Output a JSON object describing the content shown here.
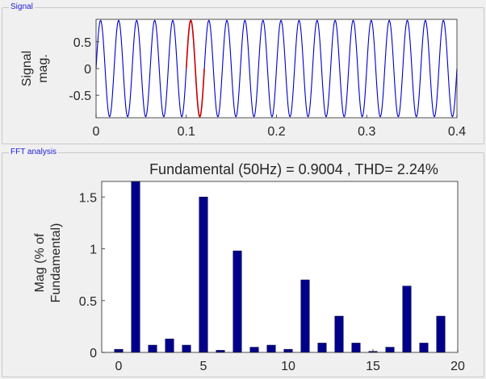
{
  "panels": {
    "signal_title": "Signal",
    "fft_title": "FFT analysis"
  },
  "chart_data": [
    {
      "type": "line",
      "title": "",
      "xlabel": "",
      "ylabel_lines": [
        "Signal",
        "mag."
      ],
      "xlim": [
        0,
        0.4
      ],
      "ylim": [
        -0.92,
        0.92
      ],
      "xticks": [
        0,
        0.1,
        0.2,
        0.3,
        0.4
      ],
      "xtick_labels": [
        "0",
        "0.1",
        "0.2",
        "0.3",
        "0.4"
      ],
      "yticks": [
        -0.5,
        0,
        0.5
      ],
      "ytick_labels": [
        "-0.5",
        "0",
        "0.5"
      ],
      "grid": false,
      "amplitude": 0.9,
      "frequency_hz": 50,
      "series_color": "#0000cc",
      "highlight": {
        "from": 0.1,
        "to": 0.12,
        "color": "#cc0000"
      }
    },
    {
      "type": "bar",
      "title": "Fundamental (50Hz) = 0.9004 , THD= 2.24%",
      "xlabel": "",
      "ylabel_lines": [
        "Mag (% of",
        "Fundamental)"
      ],
      "xlim": [
        -1,
        20
      ],
      "ylim": [
        0,
        1.65
      ],
      "xticks": [
        0,
        5,
        10,
        15,
        20
      ],
      "xtick_labels": [
        "0",
        "5",
        "10",
        "15",
        "20"
      ],
      "yticks": [
        0,
        0.5,
        1,
        1.5
      ],
      "ytick_labels": [
        "0",
        "0.5",
        "1",
        "1.5"
      ],
      "grid": false,
      "bar_color": "#00008b",
      "x": [
        0,
        1,
        2,
        3,
        4,
        5,
        6,
        7,
        8,
        9,
        10,
        11,
        12,
        13,
        14,
        15,
        16,
        17,
        18,
        19
      ],
      "values": [
        0.03,
        1.65,
        0.07,
        0.13,
        0.07,
        1.5,
        0.02,
        0.98,
        0.05,
        0.07,
        0.03,
        0.7,
        0.09,
        0.35,
        0.09,
        0.01,
        0.05,
        0.64,
        0.09,
        0.35
      ]
    }
  ]
}
